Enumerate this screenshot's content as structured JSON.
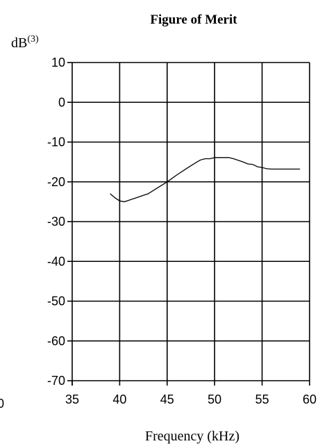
{
  "chart_data": {
    "type": "line",
    "title": "Figure of Merit",
    "ylabel": "dB",
    "ylabel_superscript": "(3)",
    "xlabel": "Frequency (kHz)",
    "xlim": [
      35,
      60
    ],
    "ylim": [
      -70,
      10
    ],
    "x_ticks": [
      35,
      40,
      45,
      50,
      55,
      60
    ],
    "y_ticks": [
      10,
      0,
      -10,
      -20,
      -30,
      -40,
      -50,
      -60,
      -70
    ],
    "x_tick_labels": [
      "35",
      "40",
      "45",
      "50",
      "55",
      "60"
    ],
    "y_tick_labels": [
      "10",
      "0",
      "-10",
      "-20",
      "-30",
      "-40",
      "-50",
      "-60",
      "-70"
    ],
    "clipped_left_label": "0",
    "grid": true,
    "series": [
      {
        "x": [
          39,
          39.5,
          40,
          40.5,
          41,
          42,
          43,
          44,
          45,
          46,
          47,
          48,
          48.5,
          49,
          49.5,
          50,
          51,
          51.5,
          52,
          53,
          53.5,
          54,
          54.5,
          55,
          55.5,
          56,
          57,
          58,
          59
        ],
        "y": [
          -23,
          -24,
          -24.8,
          -25,
          -24.6,
          -23.8,
          -23,
          -21.5,
          -20,
          -18.3,
          -16.7,
          -15.2,
          -14.5,
          -14.2,
          -14.2,
          -13.9,
          -13.9,
          -13.9,
          -14.2,
          -15,
          -15.5,
          -15.6,
          -16.2,
          -16.4,
          -16.7,
          -16.8,
          -16.8,
          -16.8,
          -16.8
        ]
      }
    ]
  }
}
